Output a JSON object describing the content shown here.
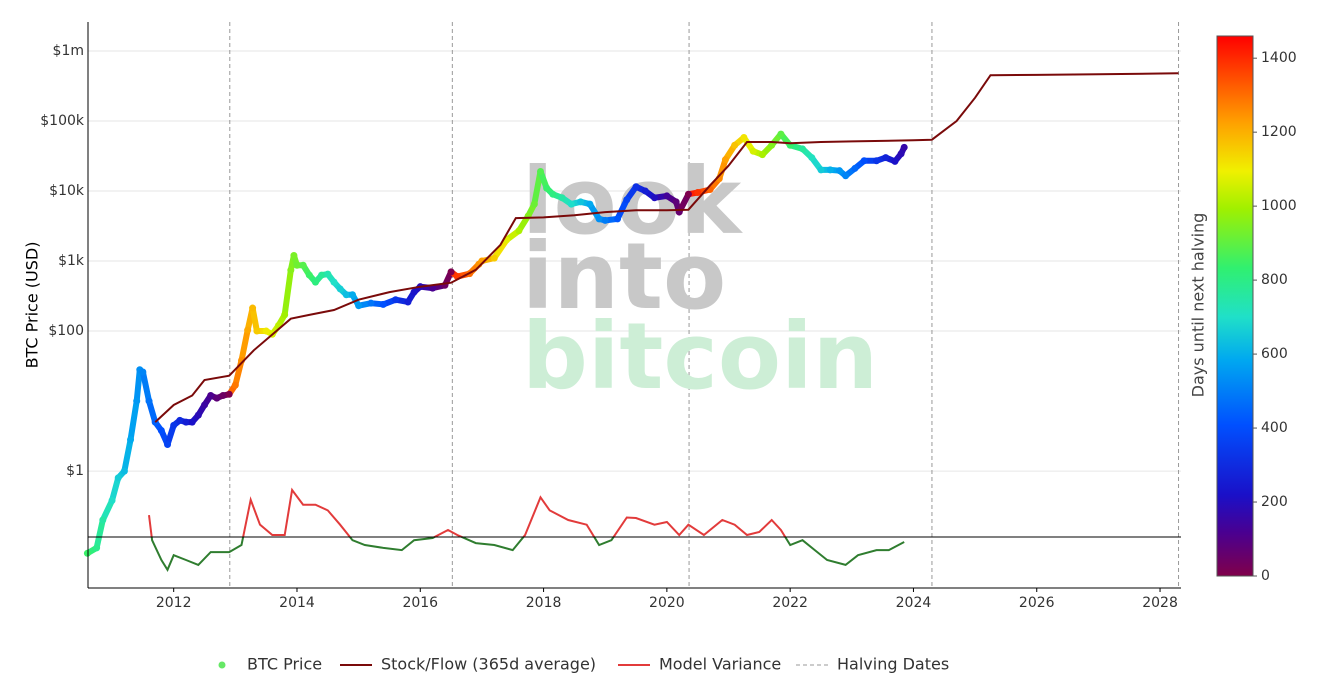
{
  "chart_data": {
    "type": "scatter",
    "y_title": "BTC Price (USD)",
    "watermark": [
      "look",
      "into",
      "bitcoin"
    ],
    "ylog": true,
    "ylim": [
      0.0214,
      2590000
    ],
    "yticks": [
      {
        "value": 1,
        "label": "$1"
      },
      {
        "value": 100,
        "label": "$100"
      },
      {
        "value": 1000,
        "label": "$1k"
      },
      {
        "value": 10000,
        "label": "$10k"
      },
      {
        "value": 100000,
        "label": "$100k"
      },
      {
        "value": 1000000,
        "label": "$1m"
      }
    ],
    "xlim": [
      2010.61,
      2028.34
    ],
    "xticks": [
      2012,
      2014,
      2016,
      2018,
      2020,
      2022,
      2024,
      2026,
      2028
    ],
    "y2log": true,
    "y2lim": [
      0.187,
      22800000
    ],
    "y2_reference": 1,
    "grid": true,
    "halving_dates": [
      2012.91,
      2016.52,
      2020.36,
      2024.3,
      2028.3
    ],
    "halving_name": "Halving Dates",
    "colorbar": {
      "title": "Days until next halving",
      "lim": [
        0,
        1460
      ],
      "ticks": [
        0,
        200,
        400,
        600,
        800,
        1000,
        1200,
        1400
      ],
      "colorscale": [
        [
          0,
          "#80004a"
        ],
        [
          0.08,
          "#4a0090"
        ],
        [
          0.15,
          "#1a10c8"
        ],
        [
          0.28,
          "#0050ff"
        ],
        [
          0.4,
          "#00a8f0"
        ],
        [
          0.48,
          "#20e0c8"
        ],
        [
          0.57,
          "#30f070"
        ],
        [
          0.68,
          "#a0f000"
        ],
        [
          0.75,
          "#f0f000"
        ],
        [
          0.84,
          "#ffa000"
        ],
        [
          1,
          "#ff0000"
        ]
      ]
    },
    "series": [
      {
        "name": "BTC Price",
        "type": "scatter",
        "color": "#66e866",
        "x": [
          2010.6,
          2010.75,
          2010.85,
          2011.0,
          2011.1,
          2011.2,
          2011.3,
          2011.4,
          2011.45,
          2011.5,
          2011.6,
          2011.7,
          2011.8,
          2011.9,
          2012.0,
          2012.1,
          2012.2,
          2012.3,
          2012.4,
          2012.5,
          2012.6,
          2012.7,
          2012.8,
          2012.9,
          2013.0,
          2013.1,
          2013.2,
          2013.28,
          2013.35,
          2013.5,
          2013.6,
          2013.7,
          2013.8,
          2013.9,
          2013.95,
          2014.0,
          2014.1,
          2014.2,
          2014.3,
          2014.4,
          2014.5,
          2014.6,
          2014.7,
          2014.8,
          2014.9,
          2015.0,
          2015.2,
          2015.4,
          2015.6,
          2015.8,
          2015.9,
          2016.0,
          2016.2,
          2016.4,
          2016.5,
          2016.6,
          2016.8,
          2016.95,
          2017.0,
          2017.2,
          2017.4,
          2017.6,
          2017.75,
          2017.85,
          2017.95,
          2018.05,
          2018.15,
          2018.3,
          2018.45,
          2018.6,
          2018.75,
          2018.9,
          2019.0,
          2019.2,
          2019.35,
          2019.5,
          2019.65,
          2019.8,
          2020.0,
          2020.15,
          2020.2,
          2020.35,
          2020.5,
          2020.7,
          2020.85,
          2020.95,
          2021.1,
          2021.25,
          2021.4,
          2021.55,
          2021.7,
          2021.85,
          2022.0,
          2022.2,
          2022.35,
          2022.5,
          2022.65,
          2022.8,
          2022.9,
          2023.05,
          2023.2,
          2023.4,
          2023.55,
          2023.7,
          2023.8,
          2023.85
        ],
        "values": [
          0.067,
          0.08,
          0.2,
          0.38,
          0.8,
          1,
          2.8,
          10,
          28,
          26,
          10,
          5,
          3.8,
          2.4,
          4.5,
          5.3,
          5,
          5,
          6.3,
          8.8,
          12,
          11,
          12,
          12.5,
          16.9,
          38,
          103,
          213,
          100,
          100,
          90,
          120,
          170,
          740,
          1200,
          870,
          870,
          630,
          500,
          630,
          650,
          500,
          400,
          330,
          330,
          230,
          250,
          240,
          280,
          260,
          360,
          430,
          410,
          450,
          700,
          600,
          660,
          900,
          1000,
          1100,
          2000,
          2700,
          4400,
          6500,
          19000,
          11000,
          9000,
          8000,
          6500,
          7000,
          6500,
          4000,
          3800,
          4000,
          7500,
          11500,
          10000,
          8000,
          8500,
          7000,
          5000,
          9000,
          9500,
          10500,
          15000,
          28000,
          45000,
          58000,
          37000,
          33000,
          45000,
          65000,
          45000,
          40000,
          30000,
          20000,
          20000,
          19500,
          16500,
          21000,
          27000,
          27000,
          30000,
          26500,
          34000,
          42000
        ]
      },
      {
        "name": "Stock/Flow (365d average)",
        "type": "line",
        "color": "#7a0a0a",
        "x": [
          2011.7,
          2012.0,
          2012.3,
          2012.5,
          2012.9,
          2013.3,
          2013.9,
          2014.2,
          2014.6,
          2015.0,
          2015.5,
          2016.0,
          2016.5,
          2016.9,
          2017.3,
          2017.55,
          2018.0,
          2018.5,
          2019.0,
          2019.5,
          2020.0,
          2020.35,
          2020.7,
          2021.0,
          2021.3,
          2021.7,
          2022.0,
          2022.5,
          2023.0,
          2023.5,
          2024.0,
          2024.3,
          2024.7,
          2025.0,
          2025.25,
          2026.0,
          2027.0,
          2028.3
        ],
        "values": [
          5,
          8.8,
          12,
          20,
          23,
          53,
          150,
          170,
          200,
          280,
          360,
          430,
          490,
          750,
          1700,
          4100,
          4200,
          4500,
          5000,
          5300,
          5300,
          5400,
          12000,
          23000,
          50000,
          50000,
          48000,
          50000,
          51000,
          52000,
          53000,
          54000,
          100000,
          215000,
          450000,
          455000,
          465000,
          480000
        ]
      },
      {
        "name": "Model Variance",
        "type": "line",
        "axis": "y2",
        "color": "#e23b3b",
        "below_color": "#2f7d2f",
        "x": [
          2011.6,
          2011.65,
          2011.8,
          2011.9,
          2012.0,
          2012.2,
          2012.4,
          2012.6,
          2012.9,
          2013.1,
          2013.25,
          2013.4,
          2013.6,
          2013.8,
          2013.92,
          2014.1,
          2014.3,
          2014.5,
          2014.7,
          2014.9,
          2015.1,
          2015.4,
          2015.7,
          2015.9,
          2016.2,
          2016.45,
          2016.6,
          2016.9,
          2017.2,
          2017.5,
          2017.7,
          2017.95,
          2018.1,
          2018.4,
          2018.7,
          2018.9,
          2019.1,
          2019.35,
          2019.5,
          2019.8,
          2020.0,
          2020.2,
          2020.35,
          2020.6,
          2020.9,
          2021.1,
          2021.3,
          2021.5,
          2021.7,
          2021.85,
          2022.0,
          2022.2,
          2022.4,
          2022.6,
          2022.9,
          2023.1,
          2023.4,
          2023.6,
          2023.85
        ],
        "values": [
          2.06,
          0.9,
          0.47,
          0.34,
          0.55,
          0.47,
          0.4,
          0.61,
          0.61,
          0.77,
          3.4,
          1.5,
          1.07,
          1.07,
          4.7,
          2.9,
          2.9,
          2.4,
          1.5,
          0.9,
          0.77,
          0.7,
          0.65,
          0.9,
          0.97,
          1.26,
          1.07,
          0.82,
          0.77,
          0.65,
          1.07,
          3.7,
          2.4,
          1.75,
          1.5,
          0.77,
          0.9,
          1.9,
          1.87,
          1.5,
          1.64,
          1.07,
          1.5,
          1.07,
          1.75,
          1.5,
          1.07,
          1.18,
          1.75,
          1.26,
          0.77,
          0.9,
          0.65,
          0.47,
          0.4,
          0.55,
          0.65,
          0.65,
          0.85
        ]
      }
    ]
  }
}
